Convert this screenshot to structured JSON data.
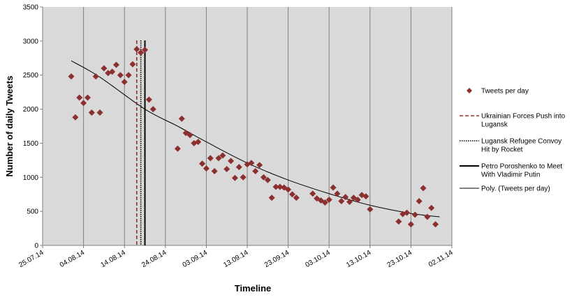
{
  "chart_data": {
    "type": "scatter",
    "xlabel": "Timeline",
    "ylabel": "Number of daily Tweets",
    "ylim": [
      0,
      3500
    ],
    "yticks": [
      0,
      500,
      1000,
      1500,
      2000,
      2500,
      3000,
      3500
    ],
    "xlim": [
      "2014-07-25",
      "2014-11-02"
    ],
    "xticks": [
      "25.07.14",
      "04.08.14",
      "14.08.14",
      "24.08.14",
      "03.09.14",
      "13.09.14",
      "23.09.14",
      "03.10.14",
      "13.10.14",
      "23.10.14",
      "02.11.14"
    ],
    "grid": "vertical",
    "legend": "right",
    "plot_bg": "#d9d9d9",
    "series": [
      {
        "name": "Tweets per day",
        "marker": "diamond",
        "color": "#8b2f2f",
        "points": [
          [
            "2014-08-01",
            2480
          ],
          [
            "2014-08-02",
            1880
          ],
          [
            "2014-08-03",
            2170
          ],
          [
            "2014-08-04",
            2090
          ],
          [
            "2014-08-05",
            2170
          ],
          [
            "2014-08-06",
            1950
          ],
          [
            "2014-08-07",
            2480
          ],
          [
            "2014-08-08",
            1950
          ],
          [
            "2014-08-09",
            2600
          ],
          [
            "2014-08-10",
            2530
          ],
          [
            "2014-08-11",
            2550
          ],
          [
            "2014-08-12",
            2650
          ],
          [
            "2014-08-13",
            2500
          ],
          [
            "2014-08-14",
            2400
          ],
          [
            "2014-08-15",
            2500
          ],
          [
            "2014-08-16",
            2660
          ],
          [
            "2014-08-17",
            2880
          ],
          [
            "2014-08-18",
            2830
          ],
          [
            "2014-08-19",
            2870
          ],
          [
            "2014-08-20",
            2140
          ],
          [
            "2014-08-21",
            2000
          ],
          [
            "2014-08-27",
            1420
          ],
          [
            "2014-08-28",
            1860
          ],
          [
            "2014-08-29",
            1650
          ],
          [
            "2014-08-30",
            1620
          ],
          [
            "2014-08-31",
            1500
          ],
          [
            "2014-09-01",
            1520
          ],
          [
            "2014-09-02",
            1200
          ],
          [
            "2014-09-03",
            1130
          ],
          [
            "2014-09-04",
            1280
          ],
          [
            "2014-09-05",
            1090
          ],
          [
            "2014-09-06",
            1280
          ],
          [
            "2014-09-07",
            1320
          ],
          [
            "2014-09-08",
            1120
          ],
          [
            "2014-09-09",
            1240
          ],
          [
            "2014-09-10",
            990
          ],
          [
            "2014-09-11",
            1150
          ],
          [
            "2014-09-12",
            1000
          ],
          [
            "2014-09-13",
            1190
          ],
          [
            "2014-09-14",
            1210
          ],
          [
            "2014-09-15",
            1090
          ],
          [
            "2014-09-16",
            1180
          ],
          [
            "2014-09-17",
            1000
          ],
          [
            "2014-09-18",
            960
          ],
          [
            "2014-09-19",
            700
          ],
          [
            "2014-09-20",
            860
          ],
          [
            "2014-09-21",
            860
          ],
          [
            "2014-09-22",
            850
          ],
          [
            "2014-09-23",
            820
          ],
          [
            "2014-09-24",
            750
          ],
          [
            "2014-09-25",
            700
          ],
          [
            "2014-09-29",
            760
          ],
          [
            "2014-09-30",
            690
          ],
          [
            "2014-10-01",
            660
          ],
          [
            "2014-10-02",
            630
          ],
          [
            "2014-10-03",
            670
          ],
          [
            "2014-10-04",
            850
          ],
          [
            "2014-10-05",
            760
          ],
          [
            "2014-10-06",
            650
          ],
          [
            "2014-10-07",
            710
          ],
          [
            "2014-10-08",
            640
          ],
          [
            "2014-10-09",
            700
          ],
          [
            "2014-10-10",
            670
          ],
          [
            "2014-10-11",
            740
          ],
          [
            "2014-10-12",
            720
          ],
          [
            "2014-10-13",
            530
          ],
          [
            "2014-10-20",
            350
          ],
          [
            "2014-10-21",
            460
          ],
          [
            "2014-10-22",
            480
          ],
          [
            "2014-10-23",
            310
          ],
          [
            "2014-10-24",
            450
          ],
          [
            "2014-10-25",
            650
          ],
          [
            "2014-10-26",
            840
          ],
          [
            "2014-10-27",
            420
          ],
          [
            "2014-10-28",
            550
          ],
          [
            "2014-10-29",
            310
          ]
        ]
      },
      {
        "name": "Ukrainian Forces Push into Lugansk",
        "kind": "vline",
        "style": "dashed",
        "color": "#9b2b2b",
        "x": "2014-08-17",
        "label_lines": [
          "Ukrainian Forces Push into",
          "Lugansk"
        ]
      },
      {
        "name": "Lugansk Refugee Convoy Hit by Rocket",
        "kind": "vline",
        "style": "dotted",
        "color": "#000000",
        "x": "2014-08-18",
        "label_lines": [
          "Lugansk Refugee Convoy",
          "Hit by Rocket"
        ]
      },
      {
        "name": "Petro Poroshenko to Meet With Vladimir Putin",
        "kind": "vline",
        "style": "solid",
        "color": "#000000",
        "x": "2014-08-19",
        "label_lines": [
          "Petro Poroshenko to Meet",
          "With Vladimir Putin"
        ]
      },
      {
        "name": "Poly. (Tweets per day)",
        "kind": "trend",
        "style": "solid",
        "color": "#000000",
        "label_lines": [
          "Poly. (Tweets per day)"
        ],
        "points": [
          [
            "2014-08-01",
            2710
          ],
          [
            "2014-08-08",
            2470
          ],
          [
            "2014-08-19",
            2000
          ],
          [
            "2014-08-27",
            1750
          ],
          [
            "2014-09-03",
            1520
          ],
          [
            "2014-09-13",
            1210
          ],
          [
            "2014-09-23",
            960
          ],
          [
            "2014-10-03",
            760
          ],
          [
            "2014-10-13",
            590
          ],
          [
            "2014-10-23",
            470
          ],
          [
            "2014-10-30",
            420
          ]
        ]
      }
    ]
  }
}
